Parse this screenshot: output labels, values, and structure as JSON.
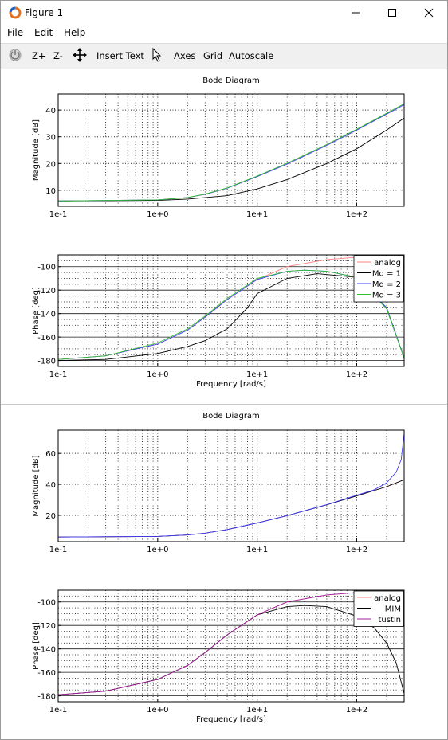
{
  "window": {
    "title": "Figure 1",
    "minimize_icon": "minimize-icon",
    "maximize_icon": "maximize-icon",
    "close_icon": "close-icon"
  },
  "menu": {
    "file": "File",
    "edit": "Edit",
    "help": "Help"
  },
  "toolbar": {
    "zoom_in": "Z+",
    "zoom_out": "Z-",
    "insert_text": "Insert Text",
    "axes": "Axes",
    "grid": "Grid",
    "autoscale": "Autoscale"
  },
  "colors": {
    "analog": "#ff8080",
    "black": "#000000",
    "blue": "#4040ff",
    "green": "#30c030",
    "purple": "#a020a0"
  },
  "chart_data": [
    {
      "type": "line",
      "title": "Bode Diagram",
      "xlabel": "",
      "ylabel": "Magnitude [dB]",
      "xscale": "log",
      "xlim": [
        0.1,
        300
      ],
      "ylim": [
        4,
        46
      ],
      "xticks": [
        "1e-1",
        "1e+0",
        "1e+1",
        "1e+2"
      ],
      "yticks": [
        10,
        20,
        30,
        40
      ],
      "grid": true,
      "series": [
        {
          "name": "analog",
          "color": "#ff8080",
          "x": [
            0.1,
            1,
            2,
            3,
            5,
            10,
            20,
            50,
            100,
            200,
            300
          ],
          "y": [
            6.0,
            6.4,
            7.3,
            8.5,
            10.8,
            15.1,
            19.8,
            26.8,
            32.5,
            38.5,
            42.0
          ]
        },
        {
          "name": "Md = 1",
          "color": "#000000",
          "x": [
            0.1,
            1,
            2,
            5,
            10,
            20,
            50,
            100,
            200,
            300
          ],
          "y": [
            6.0,
            6.2,
            6.7,
            8.0,
            10.5,
            14.0,
            20.0,
            25.5,
            32.5,
            37.0
          ]
        },
        {
          "name": "Md = 2",
          "color": "#4040ff",
          "x": [
            0.1,
            1,
            2,
            3,
            5,
            10,
            20,
            50,
            100,
            200,
            300
          ],
          "y": [
            6.0,
            6.4,
            7.3,
            8.5,
            10.8,
            15.1,
            19.8,
            26.8,
            32.5,
            38.5,
            42.0
          ]
        },
        {
          "name": "Md = 3",
          "color": "#30c030",
          "x": [
            0.1,
            1,
            2,
            3,
            5,
            10,
            20,
            50,
            100,
            200,
            300
          ],
          "y": [
            6.0,
            6.4,
            7.3,
            8.6,
            10.9,
            15.3,
            20.1,
            27.1,
            32.8,
            38.8,
            42.4
          ]
        }
      ]
    },
    {
      "type": "line",
      "title": "",
      "xlabel": "Frequency [rad/s]",
      "ylabel": "Phase [deg]",
      "xscale": "log",
      "xlim": [
        0.1,
        300
      ],
      "ylim": [
        -185,
        -90
      ],
      "xticks": [
        "1e-1",
        "1e+0",
        "1e+1",
        "1e+2"
      ],
      "yticks": [
        -100,
        -120,
        -140,
        -160,
        -180
      ],
      "grid": true,
      "legend": "top-right",
      "series": [
        {
          "name": "analog",
          "color": "#ff8080",
          "x": [
            0.1,
            0.3,
            1,
            2,
            3,
            5,
            10,
            20,
            50,
            100,
            300
          ],
          "y": [
            -179,
            -176,
            -166,
            -154,
            -143,
            -128,
            -111,
            -100,
            -94,
            -92,
            -91
          ]
        },
        {
          "name": "Md = 1",
          "color": "#000000",
          "x": [
            0.1,
            0.3,
            1,
            2,
            3,
            5,
            8,
            10,
            20,
            40,
            100,
            200,
            300
          ],
          "y": [
            -180,
            -179,
            -174,
            -168,
            -163,
            -153,
            -135,
            -123,
            -110,
            -106,
            -109,
            -135,
            -178
          ]
        },
        {
          "name": "Md = 2",
          "color": "#4040ff",
          "x": [
            0.1,
            0.3,
            1,
            2,
            3,
            5,
            10,
            20,
            30,
            50,
            100,
            200,
            300
          ],
          "y": [
            -179,
            -176,
            -166,
            -154,
            -143,
            -128,
            -111,
            -104,
            -103,
            -104,
            -109,
            -135,
            -178
          ]
        },
        {
          "name": "Md = 3",
          "color": "#30c030",
          "x": [
            0.1,
            0.3,
            1,
            2,
            3,
            5,
            10,
            20,
            30,
            50,
            100,
            200,
            300
          ],
          "y": [
            -179,
            -176,
            -165,
            -153,
            -142,
            -127,
            -110,
            -104,
            -103,
            -104,
            -109,
            -136,
            -178
          ]
        }
      ]
    },
    {
      "type": "line",
      "title": "Bode Diagram",
      "xlabel": "",
      "ylabel": "Magnitude [dB]",
      "xscale": "log",
      "xlim": [
        0.1,
        300
      ],
      "ylim": [
        3,
        75
      ],
      "xticks": [
        "1e-1",
        "1e+0",
        "1e+1",
        "1e+2"
      ],
      "yticks": [
        20,
        40,
        60
      ],
      "grid": true,
      "series": [
        {
          "name": "analog",
          "color": "#ff8080",
          "x": [
            0.1,
            1,
            2,
            3,
            5,
            10,
            20,
            50,
            100,
            200,
            300
          ],
          "y": [
            6.0,
            6.4,
            7.3,
            8.5,
            10.8,
            15.1,
            19.8,
            26.8,
            32.5,
            38.5,
            43.0
          ]
        },
        {
          "name": "MIM",
          "color": "#000000",
          "x": [
            0.1,
            1,
            2,
            3,
            5,
            10,
            20,
            50,
            100,
            200,
            300
          ],
          "y": [
            6.0,
            6.4,
            7.3,
            8.5,
            10.8,
            15.1,
            19.8,
            26.8,
            32.5,
            38.5,
            43.0
          ]
        },
        {
          "name": "tustin",
          "color": "#4040ff",
          "x": [
            0.1,
            1,
            2,
            3,
            5,
            10,
            20,
            50,
            100,
            150,
            200,
            250,
            280,
            300
          ],
          "y": [
            6.0,
            6.4,
            7.3,
            8.5,
            10.8,
            15.1,
            19.8,
            26.9,
            33.0,
            36.5,
            41.0,
            48.0,
            56.0,
            73.0
          ]
        }
      ]
    },
    {
      "type": "line",
      "title": "",
      "xlabel": "Frequency [rad/s]",
      "ylabel": "Phase [deg]",
      "xscale": "log",
      "xlim": [
        0.1,
        300
      ],
      "ylim": [
        -185,
        -90
      ],
      "xticks": [
        "1e-1",
        "1e+0",
        "1e+1",
        "1e+2"
      ],
      "yticks": [
        -100,
        -120,
        -140,
        -160,
        -180
      ],
      "grid": true,
      "legend": "top-right",
      "series": [
        {
          "name": "analog",
          "color": "#ff8080",
          "x": [
            0.1,
            0.3,
            1,
            2,
            3,
            5,
            10,
            20,
            50,
            100,
            300
          ],
          "y": [
            -179,
            -176,
            -166,
            -154,
            -143,
            -128,
            -111,
            -100,
            -94,
            -92,
            -91
          ]
        },
        {
          "name": "MIM",
          "color": "#000000",
          "x": [
            0.1,
            0.3,
            1,
            2,
            3,
            5,
            10,
            20,
            30,
            50,
            100,
            150,
            200,
            250,
            300
          ],
          "y": [
            -179,
            -176,
            -166,
            -154,
            -143,
            -128,
            -111,
            -104,
            -103,
            -104,
            -112,
            -122,
            -135,
            -152,
            -178
          ]
        },
        {
          "name": "tustin",
          "color": "#a020a0",
          "x": [
            0.1,
            0.3,
            1,
            2,
            3,
            5,
            10,
            20,
            50,
            100,
            300
          ],
          "y": [
            -179,
            -176,
            -166,
            -154,
            -143,
            -128,
            -111,
            -100,
            -94,
            -92,
            -91
          ]
        }
      ]
    }
  ]
}
